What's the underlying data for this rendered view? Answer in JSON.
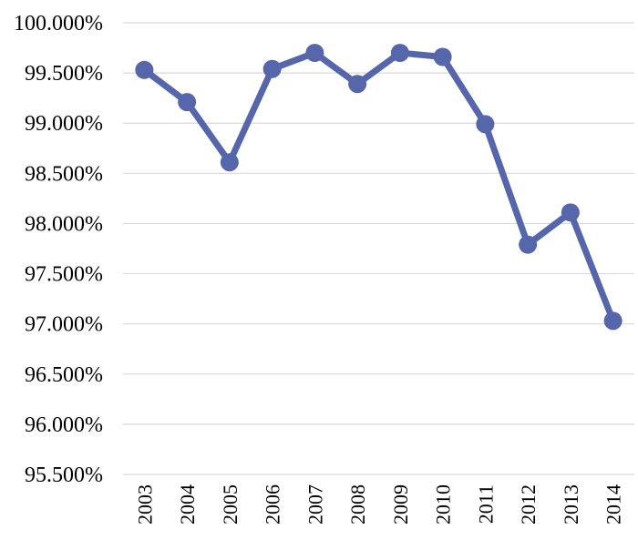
{
  "chart_data": {
    "type": "line",
    "title": "",
    "xlabel": "",
    "ylabel": "",
    "categories": [
      "2003",
      "2004",
      "2005",
      "2006",
      "2007",
      "2008",
      "2009",
      "2010",
      "2011",
      "2012",
      "2013",
      "2014"
    ],
    "series": [
      {
        "values": [
          99.53,
          99.21,
          98.61,
          99.54,
          99.7,
          99.39,
          99.7,
          99.66,
          98.99,
          97.79,
          98.11,
          97.03
        ]
      }
    ],
    "ylim": [
      95.5,
      100.0
    ],
    "ytick_values": [
      95.5,
      96.0,
      96.5,
      97.0,
      97.5,
      98.0,
      98.5,
      99.0,
      99.5,
      100.0
    ],
    "ytick_labels": [
      "95.500%",
      "96.000%",
      "96.500%",
      "97.000%",
      "97.500%",
      "98.000%",
      "98.500%",
      "99.000%",
      "99.500%",
      "100.000%"
    ],
    "grid": true,
    "legend": "none",
    "colors": {
      "line": "#5566aa",
      "grid": "#d9d9d9"
    }
  }
}
